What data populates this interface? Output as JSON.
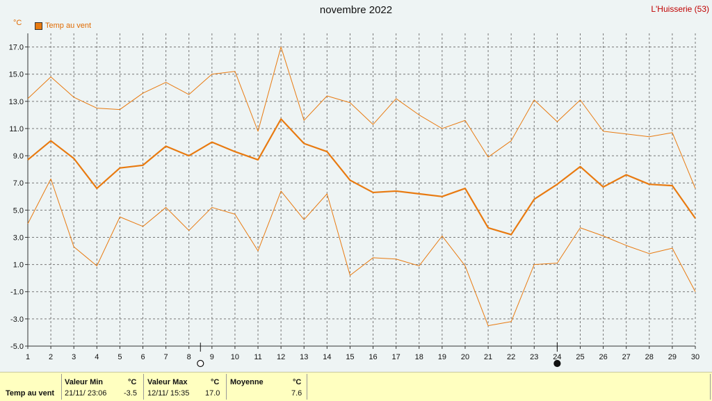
{
  "header": {
    "title": "novembre 2022",
    "station": "L'Huisserie (53)",
    "unit_label": "°C"
  },
  "chart_data": {
    "type": "line",
    "legend": "top-left",
    "grid": true,
    "x": [
      1,
      2,
      3,
      4,
      5,
      6,
      7,
      8,
      9,
      10,
      11,
      12,
      13,
      14,
      15,
      16,
      17,
      18,
      19,
      20,
      21,
      22,
      23,
      24,
      25,
      26,
      27,
      28,
      29,
      30
    ],
    "xlim": [
      1,
      30
    ],
    "ylim": [
      -5,
      18
    ],
    "yticks": [
      -5,
      -3,
      -1,
      1,
      3,
      5,
      7,
      9,
      11,
      13,
      15,
      17
    ],
    "ytick_labels": [
      "-5.0",
      "-3.0",
      "-1.0",
      "1.0",
      "3.0",
      "5.0",
      "7.0",
      "9.0",
      "11.0",
      "13.0",
      "15.0",
      "17.0"
    ],
    "series": [
      {
        "name": "Temp au vent",
        "role": "mean",
        "color": "#e87a10",
        "values": [
          8.7,
          10.1,
          8.8,
          6.6,
          8.1,
          8.3,
          9.7,
          9.0,
          10.0,
          9.3,
          8.7,
          11.7,
          9.9,
          9.3,
          7.2,
          6.3,
          6.4,
          6.2,
          6.0,
          6.6,
          3.7,
          3.2,
          5.8,
          6.9,
          8.2,
          6.7,
          7.6,
          6.9,
          6.8,
          4.4
        ]
      },
      {
        "role": "max",
        "color": "#e87a10",
        "values": [
          13.2,
          14.8,
          13.3,
          12.5,
          12.4,
          13.6,
          14.4,
          13.5,
          15.0,
          15.2,
          10.8,
          17.0,
          11.6,
          13.4,
          12.9,
          11.3,
          13.2,
          12.0,
          11.0,
          11.6,
          8.9,
          10.1,
          13.1,
          11.5,
          13.1,
          10.8,
          10.6,
          10.4,
          10.7,
          6.6
        ]
      },
      {
        "role": "min",
        "color": "#e87a10",
        "values": [
          4.0,
          7.3,
          2.3,
          0.9,
          4.5,
          3.8,
          5.2,
          3.5,
          5.2,
          4.7,
          2.0,
          6.4,
          4.3,
          6.2,
          0.2,
          1.5,
          1.4,
          0.9,
          3.1,
          0.9,
          -3.5,
          -3.2,
          1.0,
          1.1,
          3.7,
          3.1,
          2.4,
          1.8,
          2.2,
          -1.0
        ]
      }
    ],
    "moon_phases": [
      {
        "day": 8.5,
        "phase": "full"
      },
      {
        "day": 24,
        "phase": "new"
      }
    ]
  },
  "stats": {
    "row_label": "Temp au vent",
    "min": {
      "header": "Valeur Min",
      "unit": "°C",
      "datetime": "21/11/  23:06",
      "value": "-3.5"
    },
    "max": {
      "header": "Valeur Max",
      "unit": "°C",
      "datetime": "12/11/  15:35",
      "value": "17.0"
    },
    "avg": {
      "header": "Moyenne",
      "unit": "°C",
      "value": "7.6"
    }
  }
}
